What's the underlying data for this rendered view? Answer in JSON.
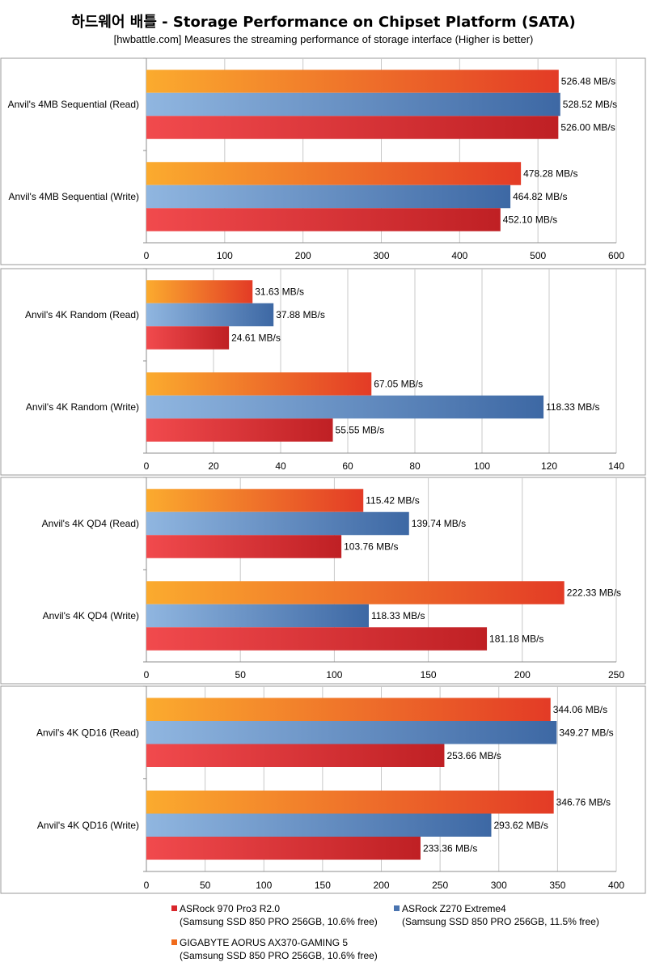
{
  "title": "하드웨어 배틀  - Storage Performance on Chipset Platform (SATA)",
  "subtitle": "[hwbattle.com] Measures the streaming performance of storage interface  (Higher is better)",
  "colors": {
    "orange_start": "#fbab2e",
    "orange_end": "#e33b26",
    "blue_start": "#90b6e0",
    "blue_end": "#3d68a4",
    "red_start": "#f14a4d",
    "red_end": "#bf2024",
    "grid": "#c8c8c8",
    "axis": "#8c8c8c"
  },
  "legend": [
    {
      "name": "ASRock 970 Pro3 R2.0",
      "detail": "(Samsung SSD 850 PRO 256GB, 10.6% free)",
      "color": "#d9262b"
    },
    {
      "name": "ASRock Z270 Extreme4",
      "detail": "(Samsung SSD 850 PRO 256GB, 11.5% free)",
      "color": "#4a74b0"
    },
    {
      "name": "GIGABYTE AORUS AX370-GAMING 5",
      "detail": "(Samsung SSD 850 PRO 256GB, 10.6% free)",
      "color": "#f06b1c"
    }
  ],
  "chart_data": [
    {
      "type": "bar",
      "orientation": "horizontal",
      "categories": [
        "Anvil's 4MB Sequential (Read)",
        "Anvil's 4MB Sequential (Write)"
      ],
      "series": [
        {
          "name": "GIGABYTE AORUS AX370-GAMING 5",
          "values": [
            526.48,
            478.28
          ],
          "labels": [
            "526.48 MB/s",
            "478.28 MB/s"
          ]
        },
        {
          "name": "ASRock Z270 Extreme4",
          "values": [
            528.52,
            464.82
          ],
          "labels": [
            "528.52 MB/s",
            "464.82 MB/s"
          ]
        },
        {
          "name": "ASRock 970 Pro3 R2.0",
          "values": [
            526.0,
            452.1
          ],
          "labels": [
            "526.00 MB/s",
            "452.10 MB/s"
          ]
        }
      ],
      "xlim": [
        0,
        600
      ],
      "ticks": [
        "0",
        "100",
        "200",
        "300",
        "400",
        "500",
        "600"
      ],
      "grid": true
    },
    {
      "type": "bar",
      "orientation": "horizontal",
      "categories": [
        "Anvil's 4K Random (Read)",
        "Anvil's 4K Random (Write)"
      ],
      "series": [
        {
          "name": "GIGABYTE AORUS AX370-GAMING 5",
          "values": [
            31.63,
            67.05
          ],
          "labels": [
            "31.63 MB/s",
            "67.05 MB/s"
          ]
        },
        {
          "name": "ASRock Z270 Extreme4",
          "values": [
            37.88,
            118.33
          ],
          "labels": [
            "37.88 MB/s",
            "118.33 MB/s"
          ]
        },
        {
          "name": "ASRock 970 Pro3 R2.0",
          "values": [
            24.61,
            55.55
          ],
          "labels": [
            "24.61 MB/s",
            "55.55 MB/s"
          ]
        }
      ],
      "xlim": [
        0,
        140
      ],
      "ticks": [
        "0",
        "20",
        "40",
        "60",
        "80",
        "100",
        "120",
        "140"
      ],
      "grid": true
    },
    {
      "type": "bar",
      "orientation": "horizontal",
      "categories": [
        "Anvil's 4K QD4 (Read)",
        "Anvil's 4K QD4 (Write)"
      ],
      "series": [
        {
          "name": "GIGABYTE AORUS AX370-GAMING 5",
          "values": [
            115.42,
            222.33
          ],
          "labels": [
            "115.42 MB/s",
            "222.33 MB/s"
          ]
        },
        {
          "name": "ASRock Z270 Extreme4",
          "values": [
            139.74,
            118.33
          ],
          "labels": [
            "139.74 MB/s",
            "118.33 MB/s"
          ]
        },
        {
          "name": "ASRock 970 Pro3 R2.0",
          "values": [
            103.76,
            181.18
          ],
          "labels": [
            "103.76 MB/s",
            "181.18 MB/s"
          ]
        }
      ],
      "xlim": [
        0,
        250
      ],
      "ticks": [
        "0",
        "50",
        "100",
        "150",
        "200",
        "250"
      ],
      "grid": true
    },
    {
      "type": "bar",
      "orientation": "horizontal",
      "categories": [
        "Anvil's 4K QD16 (Read)",
        "Anvil's 4K QD16 (Write)"
      ],
      "series": [
        {
          "name": "GIGABYTE AORUS AX370-GAMING 5",
          "values": [
            344.06,
            346.76
          ],
          "labels": [
            "344.06 MB/s",
            "346.76 MB/s"
          ]
        },
        {
          "name": "ASRock Z270 Extreme4",
          "values": [
            349.27,
            293.62
          ],
          "labels": [
            "349.27 MB/s",
            "293.62 MB/s"
          ]
        },
        {
          "name": "ASRock 970 Pro3 R2.0",
          "values": [
            253.66,
            233.36
          ],
          "labels": [
            "253.66 MB/s",
            "233.36 MB/s"
          ]
        }
      ],
      "xlim": [
        0,
        400
      ],
      "ticks": [
        "0",
        "50",
        "100",
        "150",
        "200",
        "250",
        "300",
        "350",
        "400"
      ],
      "grid": true
    }
  ]
}
